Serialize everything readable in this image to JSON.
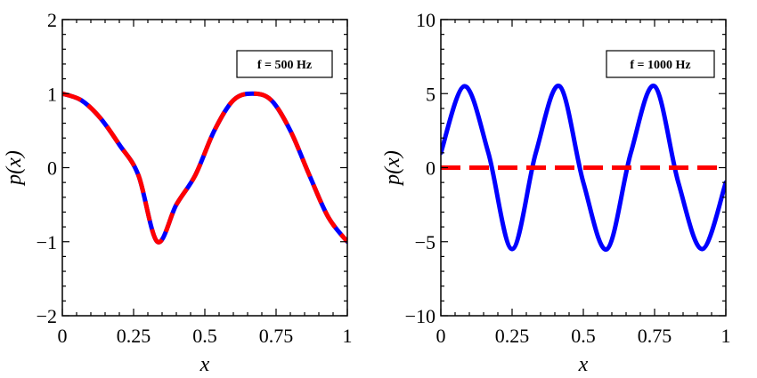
{
  "chart_data": [
    {
      "type": "line",
      "annotation": "f = 500 Hz",
      "xlabel": "x",
      "ylabel": "p(x)",
      "xlim": [
        0,
        1
      ],
      "ylim": [
        -2,
        2
      ],
      "xticks": [
        0,
        0.25,
        0.5,
        0.75,
        1
      ],
      "xtick_labels": [
        "0",
        "0.25",
        "0.5",
        "0.75",
        "1"
      ],
      "yticks": [
        -2,
        -1,
        0,
        1,
        2
      ],
      "ytick_labels": [
        "−2",
        "−1",
        "0",
        "1",
        "2"
      ],
      "grid": false,
      "series": [
        {
          "style": "solid",
          "color": "#0000ff",
          "x": [
            0,
            0.0667,
            0.1333,
            0.2,
            0.2667,
            0.3333,
            0.4,
            0.4667,
            0.5333,
            0.6,
            0.6667,
            0.7333,
            0.8,
            0.8667,
            0.9333,
            1
          ],
          "y": [
            1,
            0.91,
            0.67,
            0.31,
            -0.1,
            -1,
            -0.5,
            -0.1,
            0.5,
            0.91,
            1,
            0.91,
            0.5,
            -0.1,
            -0.67,
            -1
          ]
        },
        {
          "style": "dashed",
          "color": "#ff0000",
          "x": [
            0,
            0.0667,
            0.1333,
            0.2,
            0.2667,
            0.3333,
            0.4,
            0.4667,
            0.5333,
            0.6,
            0.6667,
            0.7333,
            0.8,
            0.8667,
            0.9333,
            1
          ],
          "y": [
            1,
            0.91,
            0.67,
            0.31,
            -0.1,
            -1,
            -0.5,
            -0.1,
            0.5,
            0.91,
            1,
            0.91,
            0.5,
            -0.1,
            -0.67,
            -1
          ]
        }
      ]
    },
    {
      "type": "line",
      "annotation": "f = 1000 Hz",
      "xlabel": "x",
      "ylabel": "p(x)",
      "xlim": [
        0,
        1
      ],
      "ylim": [
        -10,
        10
      ],
      "xticks": [
        0,
        0.25,
        0.5,
        0.75,
        1
      ],
      "xtick_labels": [
        "0",
        "0.25",
        "0.5",
        "0.75",
        "1"
      ],
      "yticks": [
        -10,
        -5,
        0,
        5,
        10
      ],
      "ytick_labels": [
        "−10",
        "−5",
        "0",
        "5",
        "10"
      ],
      "grid": false,
      "series": [
        {
          "style": "solid",
          "color": "#0000ff",
          "x": [
            0,
            0.0833,
            0.1667,
            0.25,
            0.3333,
            0.4167,
            0.5,
            0.5833,
            0.6667,
            0.75,
            0.8333,
            0.9167,
            1
          ],
          "y": [
            1,
            5.5,
            1,
            -5.5,
            1,
            5.5,
            -1,
            -5.5,
            1,
            5.5,
            -1,
            -5.5,
            -1
          ]
        },
        {
          "style": "dashed",
          "color": "#ff0000",
          "x": [
            0,
            1
          ],
          "y": [
            0,
            0
          ]
        }
      ]
    }
  ]
}
